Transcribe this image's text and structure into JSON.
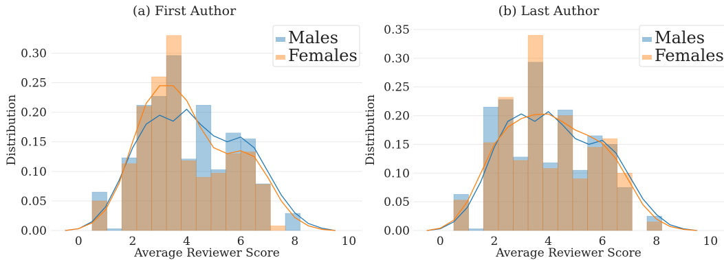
{
  "chart_data": [
    {
      "type": "bar",
      "title": "(a) First Author",
      "xlabel": "Average Reviewer Score",
      "ylabel": "Distribution",
      "xlim": [
        -1,
        10.5
      ],
      "ylim": [
        0,
        0.34
      ],
      "xticks": [
        "0",
        "2",
        "4",
        "6",
        "8",
        "10"
      ],
      "yticks": [
        "0.00",
        "0.05",
        "0.10",
        "0.15",
        "0.20",
        "0.25",
        "0.30"
      ],
      "bin_edges": [
        0.5,
        1.05,
        1.6,
        2.15,
        2.7,
        3.25,
        3.8,
        4.35,
        4.9,
        5.45,
        6.0,
        6.55,
        7.1,
        7.65,
        8.2,
        8.75
      ],
      "legend_position": "top-right",
      "grid": true,
      "series": [
        {
          "name": "Males",
          "color": "#1f77b4",
          "values": [
            0.065,
            0.003,
            0.123,
            0.212,
            0.227,
            0.296,
            0.121,
            0.212,
            0.103,
            0.165,
            0.155,
            0.079,
            0.0,
            0.029
          ],
          "kde": [
            [
              -0.5,
              0.0
            ],
            [
              0.0,
              0.003
            ],
            [
              0.5,
              0.015
            ],
            [
              1.0,
              0.04
            ],
            [
              1.5,
              0.085
            ],
            [
              2.0,
              0.14
            ],
            [
              2.5,
              0.18
            ],
            [
              3.0,
              0.195
            ],
            [
              3.5,
              0.185
            ],
            [
              4.0,
              0.205
            ],
            [
              4.5,
              0.18
            ],
            [
              5.0,
              0.16
            ],
            [
              5.5,
              0.15
            ],
            [
              6.0,
              0.158
            ],
            [
              6.5,
              0.14
            ],
            [
              7.0,
              0.1
            ],
            [
              7.5,
              0.06
            ],
            [
              8.0,
              0.03
            ],
            [
              8.5,
              0.012
            ],
            [
              9.0,
              0.004
            ],
            [
              9.5,
              0.0
            ]
          ]
        },
        {
          "name": "Females",
          "color": "#ff7f0e",
          "values": [
            0.05,
            0.0,
            0.113,
            0.21,
            0.26,
            0.33,
            0.118,
            0.09,
            0.097,
            0.13,
            0.133,
            0.078,
            0.008,
            0.0
          ],
          "kde": [
            [
              -0.5,
              0.0
            ],
            [
              0.0,
              0.003
            ],
            [
              0.5,
              0.013
            ],
            [
              1.0,
              0.035
            ],
            [
              1.5,
              0.08
            ],
            [
              2.0,
              0.15
            ],
            [
              2.5,
              0.215
            ],
            [
              3.0,
              0.245
            ],
            [
              3.5,
              0.245
            ],
            [
              4.0,
              0.22
            ],
            [
              4.5,
              0.175
            ],
            [
              5.0,
              0.14
            ],
            [
              5.5,
              0.13
            ],
            [
              6.0,
              0.135
            ],
            [
              6.5,
              0.125
            ],
            [
              7.0,
              0.09
            ],
            [
              7.5,
              0.05
            ],
            [
              8.0,
              0.022
            ],
            [
              8.5,
              0.008
            ],
            [
              9.0,
              0.002
            ],
            [
              9.5,
              0.0
            ]
          ]
        }
      ]
    },
    {
      "type": "bar",
      "title": "(b) Last Author",
      "xlabel": "Average Reviewer Score",
      "ylabel": "Distribution",
      "xlim": [
        -1,
        10.5
      ],
      "ylim": [
        0,
        0.35
      ],
      "xticks": [
        "0",
        "2",
        "4",
        "6",
        "8",
        "10"
      ],
      "yticks": [
        "0.00",
        "0.05",
        "0.10",
        "0.15",
        "0.20",
        "0.25",
        "0.30",
        "0.35"
      ],
      "bin_edges": [
        0.5,
        1.05,
        1.6,
        2.15,
        2.7,
        3.25,
        3.8,
        4.35,
        4.9,
        5.45,
        6.0,
        6.55,
        7.1,
        7.65,
        8.2,
        8.75
      ],
      "legend_position": "top-right",
      "grid": true,
      "series": [
        {
          "name": "Males",
          "color": "#1f77b4",
          "values": [
            0.063,
            0.003,
            0.215,
            0.228,
            0.128,
            0.293,
            0.118,
            0.21,
            0.105,
            0.165,
            0.15,
            0.075,
            0.0,
            0.025
          ],
          "kde": [
            [
              -0.5,
              0.0
            ],
            [
              0.0,
              0.003
            ],
            [
              0.5,
              0.015
            ],
            [
              1.0,
              0.04
            ],
            [
              1.5,
              0.085
            ],
            [
              2.0,
              0.145
            ],
            [
              2.5,
              0.19
            ],
            [
              3.0,
              0.203
            ],
            [
              3.5,
              0.19
            ],
            [
              4.0,
              0.207
            ],
            [
              4.5,
              0.185
            ],
            [
              5.0,
              0.16
            ],
            [
              5.5,
              0.15
            ],
            [
              6.0,
              0.157
            ],
            [
              6.5,
              0.135
            ],
            [
              7.0,
              0.095
            ],
            [
              7.5,
              0.055
            ],
            [
              8.0,
              0.028
            ],
            [
              8.5,
              0.01
            ],
            [
              9.0,
              0.003
            ],
            [
              9.5,
              0.0
            ]
          ]
        },
        {
          "name": "Females",
          "color": "#ff7f0e",
          "values": [
            0.053,
            0.0,
            0.153,
            0.232,
            0.122,
            0.34,
            0.108,
            0.2,
            0.09,
            0.145,
            0.16,
            0.1,
            0.0,
            0.015
          ],
          "kde": [
            [
              -0.5,
              0.0
            ],
            [
              0.0,
              0.004
            ],
            [
              0.5,
              0.018
            ],
            [
              1.0,
              0.05
            ],
            [
              1.5,
              0.1
            ],
            [
              2.0,
              0.15
            ],
            [
              2.5,
              0.18
            ],
            [
              3.0,
              0.195
            ],
            [
              3.5,
              0.202
            ],
            [
              4.0,
              0.203
            ],
            [
              4.5,
              0.19
            ],
            [
              5.0,
              0.175
            ],
            [
              5.5,
              0.165
            ],
            [
              6.0,
              0.152
            ],
            [
              6.5,
              0.125
            ],
            [
              7.0,
              0.085
            ],
            [
              7.5,
              0.045
            ],
            [
              8.0,
              0.02
            ],
            [
              8.5,
              0.007
            ],
            [
              9.0,
              0.002
            ],
            [
              9.5,
              0.0
            ]
          ]
        }
      ]
    }
  ]
}
